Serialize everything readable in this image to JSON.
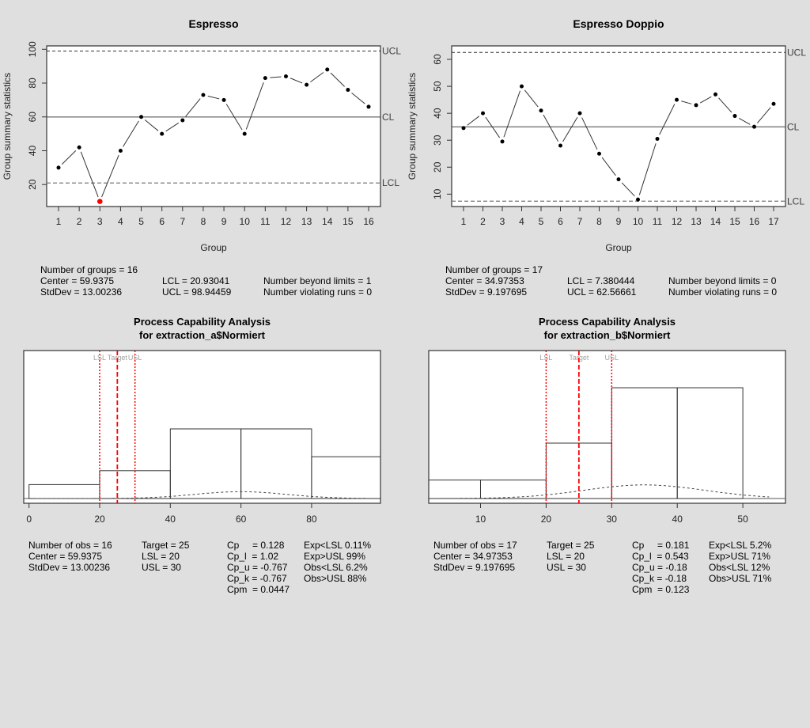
{
  "chart_data": [
    {
      "type": "line",
      "id": "xbar_a",
      "title": "Espresso",
      "xlabel": "Group",
      "ylabel": "Group summary statistics",
      "categories": [
        "1",
        "2",
        "3",
        "4",
        "5",
        "6",
        "7",
        "8",
        "9",
        "10",
        "11",
        "12",
        "13",
        "14",
        "15",
        "16"
      ],
      "values": [
        30,
        42,
        10,
        40,
        60,
        50,
        58,
        73,
        70,
        50,
        83,
        84,
        79,
        88,
        76,
        66
      ],
      "out_of_control": [
        3
      ],
      "yticks": [
        20,
        40,
        60,
        80,
        100
      ],
      "ylim": [
        7,
        102
      ],
      "limits": {
        "UCL": 98.94459,
        "CL": 59.9375,
        "LCL": 20.93041
      },
      "limit_labels": {
        "UCL": "UCL",
        "CL": "CL",
        "LCL": "LCL"
      },
      "summary": {
        "groups": "Number of groups = 16",
        "center": "Center = 59.9375",
        "stddev": "StdDev = 13.00236",
        "lcl": "LCL = 20.93041",
        "ucl": "UCL = 98.94459",
        "beyond": "Number beyond limits = 1",
        "violating": "Number violating runs = 0"
      }
    },
    {
      "type": "line",
      "id": "xbar_b",
      "title": "Espresso Doppio",
      "xlabel": "Group",
      "ylabel": "Group summary statistics",
      "categories": [
        "1",
        "2",
        "3",
        "4",
        "5",
        "6",
        "7",
        "8",
        "9",
        "10",
        "11",
        "12",
        "13",
        "14",
        "15",
        "16",
        "17"
      ],
      "values": [
        34.5,
        40,
        29.5,
        50,
        41,
        28,
        40,
        25,
        15.5,
        8,
        30.5,
        45,
        43,
        47,
        39,
        35,
        43.5
      ],
      "out_of_control": [],
      "yticks": [
        10,
        20,
        30,
        40,
        50,
        60
      ],
      "ylim": [
        5.4,
        65
      ],
      "limits": {
        "UCL": 62.56661,
        "CL": 34.97353,
        "LCL": 7.380444
      },
      "limit_labels": {
        "UCL": "UCL",
        "CL": "CL",
        "LCL": "LCL"
      },
      "summary": {
        "groups": "Number of groups = 17",
        "center": "Center = 34.97353",
        "stddev": "StdDev = 9.197695",
        "lcl": "LCL = 7.380444",
        "ucl": "UCL = 62.56661",
        "beyond": "Number beyond limits = 0",
        "violating": "Number violating runs = 0"
      }
    },
    {
      "type": "bar",
      "id": "cap_a",
      "title": "Process Capability Analysis",
      "subtitle": "for extraction_a$Normiert",
      "bins": [
        [
          0,
          20
        ],
        [
          20,
          40
        ],
        [
          40,
          60
        ],
        [
          60,
          80
        ],
        [
          80,
          100
        ]
      ],
      "counts": [
        1,
        2,
        5,
        5,
        3
      ],
      "xticks": [
        0,
        20,
        40,
        60,
        80
      ],
      "xlim": [
        -1.5,
        99.5
      ],
      "normal": {
        "mean": 59.9375,
        "sd": 13.00236,
        "from": 2,
        "to": 96
      },
      "spec": {
        "LSL": 20,
        "Target": 25,
        "USL": 30
      },
      "spec_labels": {
        "LSL": "LSL",
        "Target": "Target",
        "USL": "USL"
      },
      "summary": {
        "nobs": "Number of obs = 16",
        "center": "Center = 59.9375",
        "stddev": "StdDev = 13.00236",
        "target": "Target = 25",
        "lsl": "LSL = 20",
        "usl": "USL = 30",
        "cp": "Cp     = 0.128",
        "cpl": "Cp_l  = 1.02",
        "cpu": "Cp_u = -0.767",
        "cpk": "Cp_k = -0.767",
        "cpm": "Cpm  = 0.0447",
        "exp_lsl": "Exp<LSL 0.11%",
        "exp_usl": "Exp>USL 99%",
        "obs_lsl": "Obs<LSL 6.2%",
        "obs_usl": "Obs>USL 88%"
      }
    },
    {
      "type": "bar",
      "id": "cap_b",
      "title": "Process Capability Analysis",
      "subtitle": "for extraction_b$Normiert",
      "bins": [
        [
          0,
          10
        ],
        [
          10,
          20
        ],
        [
          20,
          30
        ],
        [
          30,
          40
        ],
        [
          40,
          50
        ]
      ],
      "counts": [
        1,
        1,
        3,
        6,
        6
      ],
      "xticks": [
        10,
        20,
        30,
        40,
        50
      ],
      "xlim": [
        2.1,
        56.5
      ],
      "normal": {
        "mean": 34.97353,
        "sd": 9.197695,
        "from": 4,
        "to": 54
      },
      "spec": {
        "LSL": 20,
        "Target": 25,
        "USL": 30
      },
      "spec_labels": {
        "LSL": "LSL",
        "Target": "Target",
        "USL": "USL"
      },
      "summary": {
        "nobs": "Number of obs = 17",
        "center": "Center = 34.97353",
        "stddev": "StdDev = 9.197695",
        "target": "Target = 25",
        "lsl": "LSL = 20",
        "usl": "USL = 30",
        "cp": "Cp     = 0.181",
        "cpl": "Cp_l  = 0.543",
        "cpu": "Cp_u = -0.18",
        "cpk": "Cp_k = -0.18",
        "cpm": "Cpm  = 0.123",
        "exp_lsl": "Exp<LSL 5.2%",
        "exp_usl": "Exp>USL 71%",
        "obs_lsl": "Obs<LSL 12%",
        "obs_usl": "Obs>USL 71%"
      }
    }
  ],
  "colors": {
    "background": "#dfdfdf",
    "plot_bg": "#ffffff",
    "point": "#000000",
    "out_of_control": "#ff0000",
    "spec_lines": "#ff0000",
    "spec_label": "#a0a0a0",
    "limit_label": "#404040"
  }
}
